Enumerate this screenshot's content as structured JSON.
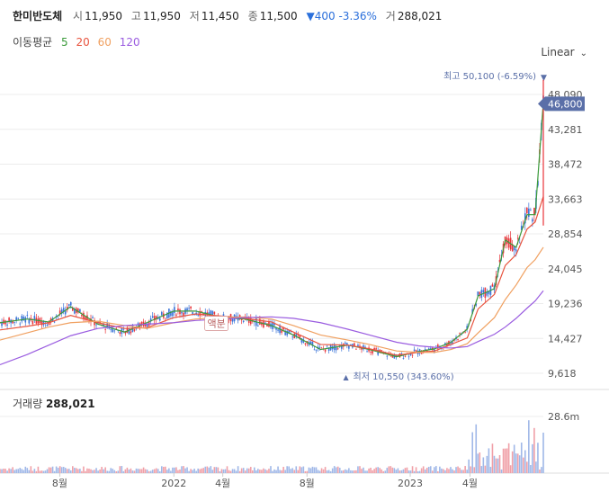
{
  "header": {
    "name": "한미반도체",
    "open_label": "시",
    "open_value": "11,950",
    "high_label": "고",
    "high_value": "11,950",
    "low_label": "저",
    "low_value": "11,450",
    "close_label": "종",
    "close_value": "11,500",
    "change": "▼400 -3.36%",
    "volume_label": "거",
    "volume_value": "288,021"
  },
  "moving_average": {
    "title": "이동평균",
    "periods": [
      {
        "period": "5",
        "color": "#3a9a3a"
      },
      {
        "period": "20",
        "color": "#e8543f"
      },
      {
        "period": "60",
        "color": "#f0a060"
      },
      {
        "period": "120",
        "color": "#9a5ce0"
      }
    ]
  },
  "scale_mode": "Linear",
  "volume_panel": {
    "title": "거래량",
    "value": "288,021",
    "max_tick": "28.6m"
  },
  "colors": {
    "up": "#e8343a",
    "down": "#3a73d8",
    "accent": "#5a6fa8"
  },
  "chart_data": {
    "type": "candlestick",
    "y_ticks": [
      "48,090",
      "43,281",
      "38,472",
      "33,663",
      "28,854",
      "24,045",
      "19,236",
      "14,427",
      "9,618"
    ],
    "y_tick_values": [
      48090,
      43281,
      38472,
      33663,
      28854,
      24045,
      19236,
      14427,
      9618
    ],
    "x_ticks": [
      "8월",
      "2022",
      "4월",
      "8월",
      "2023",
      "4월"
    ],
    "current_price": "46,800",
    "current_price_value": 46800,
    "high_annotation": "최고 50,100 (-6.59%)",
    "high_value": 50100,
    "low_annotation": "최저 10,550 (343.60%)",
    "low_value": 10550,
    "event_marker": "액분",
    "series": [
      {
        "name": "5",
        "color": "#3a9a3a",
        "x": [
          0.0,
          0.05,
          0.09,
          0.13,
          0.18,
          0.23,
          0.27,
          0.32,
          0.36,
          0.41,
          0.45,
          0.5,
          0.54,
          0.59,
          0.64,
          0.68,
          0.73,
          0.77,
          0.8,
          0.83,
          0.86,
          0.88,
          0.91,
          0.93,
          0.95,
          0.97,
          0.985,
          1.0
        ],
        "values": [
          16600,
          17100,
          16700,
          18800,
          16400,
          15300,
          16600,
          18200,
          18200,
          17300,
          17100,
          16200,
          14900,
          12900,
          13500,
          12900,
          11900,
          12600,
          13000,
          13900,
          15700,
          20300,
          21300,
          28000,
          27000,
          31500,
          31500,
          47000
        ]
      },
      {
        "name": "20",
        "color": "#e8543f",
        "x": [
          0.0,
          0.05,
          0.09,
          0.13,
          0.18,
          0.23,
          0.27,
          0.32,
          0.36,
          0.41,
          0.45,
          0.5,
          0.54,
          0.59,
          0.64,
          0.68,
          0.73,
          0.77,
          0.8,
          0.83,
          0.86,
          0.88,
          0.91,
          0.93,
          0.95,
          0.97,
          0.985,
          1.0
        ],
        "values": [
          15600,
          16100,
          16600,
          17600,
          16600,
          15800,
          15900,
          17300,
          17800,
          17500,
          17200,
          16700,
          15300,
          13600,
          13500,
          13000,
          12100,
          12500,
          12700,
          13600,
          14500,
          18500,
          20500,
          24500,
          26000,
          29500,
          30500,
          34000
        ]
      },
      {
        "name": "60",
        "color": "#f0a060",
        "x": [
          0.0,
          0.05,
          0.09,
          0.13,
          0.18,
          0.23,
          0.27,
          0.32,
          0.36,
          0.41,
          0.45,
          0.5,
          0.54,
          0.59,
          0.64,
          0.68,
          0.73,
          0.77,
          0.8,
          0.83,
          0.86,
          0.88,
          0.91,
          0.93,
          0.95,
          0.97,
          0.985,
          1.0
        ],
        "values": [
          14200,
          15200,
          16000,
          16600,
          16800,
          16200,
          15800,
          16600,
          17100,
          17300,
          17400,
          17100,
          16200,
          14900,
          14200,
          13600,
          12700,
          12500,
          12500,
          12900,
          13700,
          15200,
          17300,
          19800,
          21800,
          24200,
          25300,
          27000
        ]
      },
      {
        "name": "120",
        "color": "#9a5ce0",
        "x": [
          0.0,
          0.05,
          0.09,
          0.13,
          0.18,
          0.23,
          0.27,
          0.32,
          0.36,
          0.41,
          0.45,
          0.5,
          0.54,
          0.59,
          0.64,
          0.68,
          0.73,
          0.77,
          0.8,
          0.83,
          0.86,
          0.88,
          0.91,
          0.93,
          0.95,
          0.97,
          0.985,
          1.0
        ],
        "values": [
          10800,
          12200,
          13500,
          14800,
          15800,
          16200,
          16400,
          16600,
          16900,
          17100,
          17300,
          17400,
          17200,
          16600,
          15700,
          14900,
          13900,
          13400,
          13200,
          13100,
          13300,
          14000,
          15000,
          16000,
          17200,
          18600,
          19600,
          21000
        ]
      }
    ],
    "ylim": [
      8500,
      51000
    ],
    "grid": true
  }
}
